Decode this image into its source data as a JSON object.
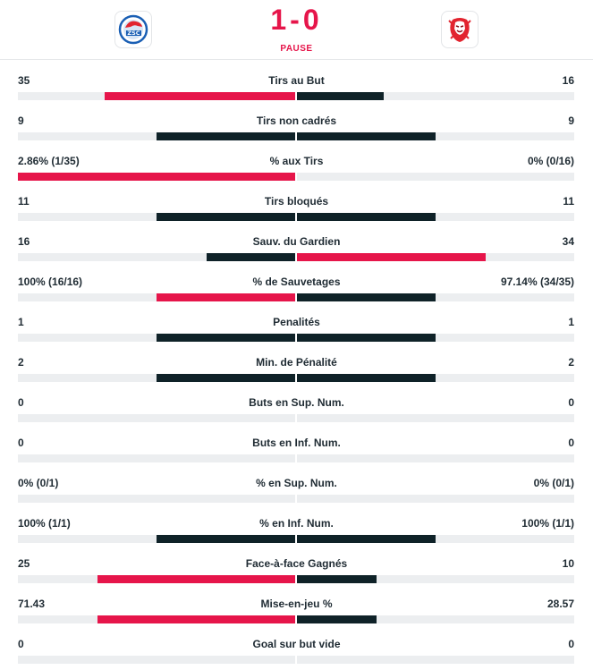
{
  "header": {
    "score": "1-0",
    "status": "PAUSE",
    "home_logo_icon": "zsc-lions-logo-icon",
    "away_logo_icon": "lausanne-lion-logo-icon"
  },
  "colors": {
    "lead": "#e6154a",
    "trail": "#0f2228",
    "track": "#eceef0"
  },
  "stats": [
    {
      "label": "Tirs au But",
      "left": "35",
      "right": "16",
      "left_share": 0.686,
      "right_share": 0.314,
      "leader": "left"
    },
    {
      "label": "Tirs non cadrés",
      "left": "9",
      "right": "9",
      "left_share": 0.5,
      "right_share": 0.5,
      "leader": "none"
    },
    {
      "label": "% aux Tirs",
      "left": "2.86% (1/35)",
      "right": "0% (0/16)",
      "left_share": 1.0,
      "right_share": 0.0,
      "leader": "left"
    },
    {
      "label": "Tirs bloqués",
      "left": "11",
      "right": "11",
      "left_share": 0.5,
      "right_share": 0.5,
      "leader": "none"
    },
    {
      "label": "Sauv. du Gardien",
      "left": "16",
      "right": "34",
      "left_share": 0.32,
      "right_share": 0.68,
      "leader": "right"
    },
    {
      "label": "% de Sauvetages",
      "left": "100% (16/16)",
      "right": "97.14% (34/35)",
      "left_share": 0.5,
      "right_share": 0.5,
      "leader": "left"
    },
    {
      "label": "Penalités",
      "left": "1",
      "right": "1",
      "left_share": 0.5,
      "right_share": 0.5,
      "leader": "none"
    },
    {
      "label": "Min. de Pénalité",
      "left": "2",
      "right": "2",
      "left_share": 0.5,
      "right_share": 0.5,
      "leader": "none"
    },
    {
      "label": "Buts en Sup. Num.",
      "left": "0",
      "right": "0",
      "left_share": 0.0,
      "right_share": 0.0,
      "leader": "none"
    },
    {
      "label": "Buts en Inf. Num.",
      "left": "0",
      "right": "0",
      "left_share": 0.0,
      "right_share": 0.0,
      "leader": "none"
    },
    {
      "label": "% en Sup. Num.",
      "left": "0% (0/1)",
      "right": "0% (0/1)",
      "left_share": 0.0,
      "right_share": 0.0,
      "leader": "none"
    },
    {
      "label": "% en Inf. Num.",
      "left": "100% (1/1)",
      "right": "100% (1/1)",
      "left_share": 0.5,
      "right_share": 0.5,
      "leader": "none"
    },
    {
      "label": "Face-à-face Gagnés",
      "left": "25",
      "right": "10",
      "left_share": 0.714,
      "right_share": 0.286,
      "leader": "left"
    },
    {
      "label": "Mise-en-jeu %",
      "left": "71.43",
      "right": "28.57",
      "left_share": 0.714,
      "right_share": 0.286,
      "leader": "left"
    },
    {
      "label": "Goal sur but vide",
      "left": "0",
      "right": "0",
      "left_share": 0.0,
      "right_share": 0.0,
      "leader": "none"
    }
  ]
}
